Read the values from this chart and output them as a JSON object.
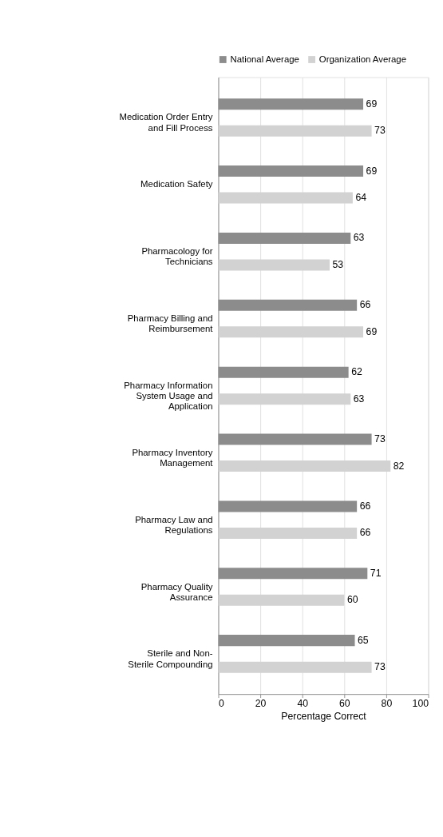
{
  "chart_data": {
    "type": "bar",
    "orientation": "horizontal",
    "xlabel": "Percentage Correct",
    "categories": [
      "Medication Order Entry and Fill Process",
      "Medication Safety",
      "Pharmacology for Technicians",
      "Pharmacy Billing and Reimbursement",
      "Pharmacy Information System Usage and Application",
      "Pharmacy Inventory Management",
      "Pharmacy Law and Regulations",
      "Pharmacy Quality Assurance",
      "Sterile and Non-Sterile Compounding"
    ],
    "series": [
      {
        "name": "National Average",
        "color": "#8c8c8c",
        "values": [
          69,
          69,
          63,
          66,
          62,
          73,
          66,
          71,
          65
        ]
      },
      {
        "name": "Organization Average",
        "color": "#d2d2d2",
        "values": [
          73,
          64,
          53,
          69,
          63,
          82,
          66,
          60,
          73
        ]
      }
    ],
    "xlim": [
      0,
      100
    ],
    "xticks": [
      0,
      20,
      40,
      60,
      80,
      100
    ],
    "grid": "x",
    "legend": "top",
    "data_labels": true
  }
}
